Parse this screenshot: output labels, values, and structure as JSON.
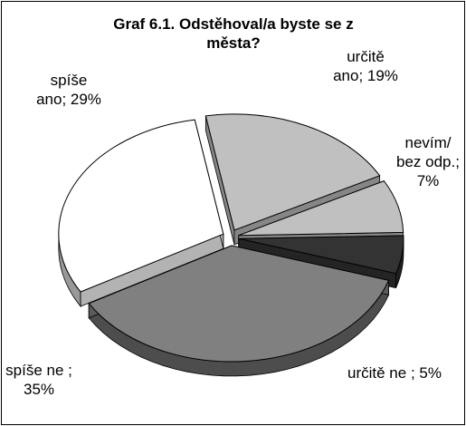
{
  "chart_data": {
    "type": "pie",
    "title": "Graf 6.1. Odstěhoval/a byste se z města?",
    "values": [
      19,
      7,
      5,
      35,
      29
    ],
    "value_labels": [
      "určitě ano; 19%",
      "nevím/ bez odp.; 7%",
      "určitě ne ; 5%",
      "spíše ne ; 35%",
      "spíše ano; 29%"
    ],
    "colors": [
      "#c0c0c0",
      "#c0c0c0",
      "#333333",
      "#808080",
      "#ffffff"
    ]
  }
}
